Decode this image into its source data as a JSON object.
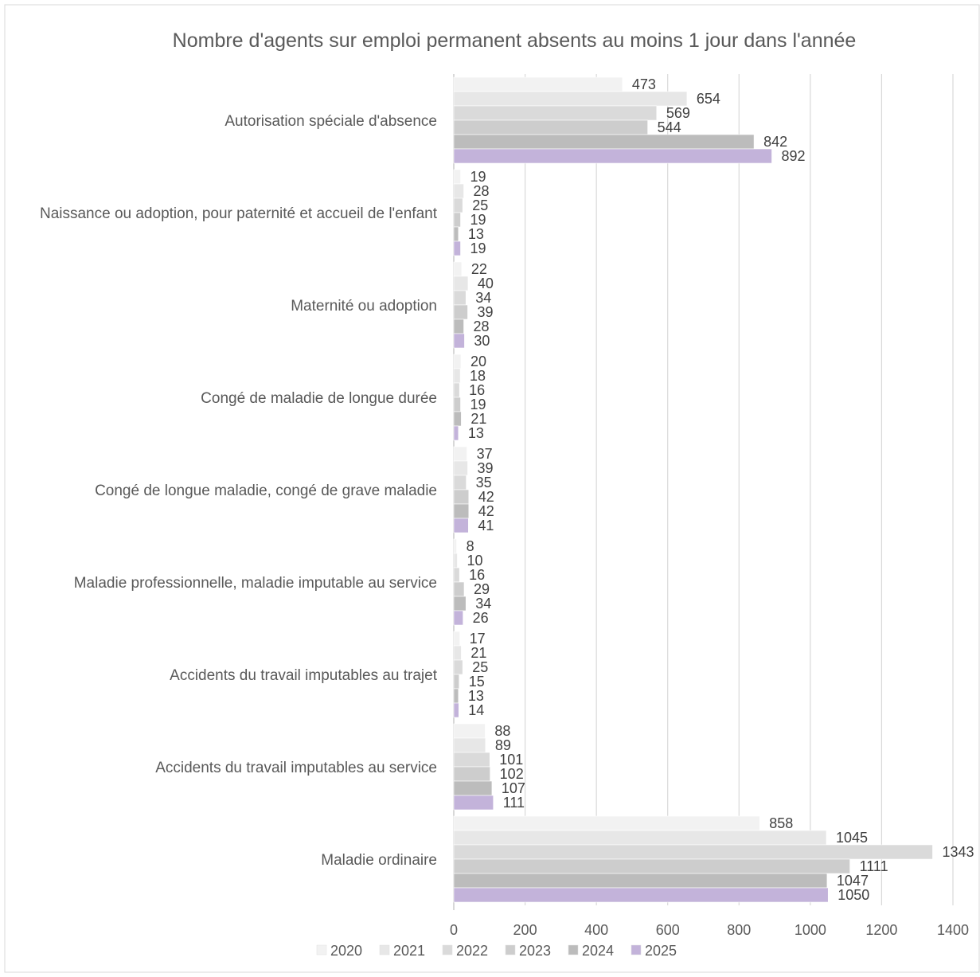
{
  "chart_data": {
    "type": "bar",
    "orientation": "horizontal",
    "title": "Nombre d'agents sur emploi permanent absents au moins 1 jour dans l'année",
    "categories": [
      "Autorisation spéciale d'absence",
      "Naissance ou adoption, pour paternité et accueil de l'enfant",
      "Maternité ou adoption",
      "Congé de maladie de longue durée",
      "Congé de longue maladie, congé de grave maladie",
      "Maladie professionnelle, maladie imputable au service",
      "Accidents du travail imputables au trajet",
      "Accidents du travail imputables au service",
      "Maladie ordinaire"
    ],
    "series": [
      {
        "name": "2020",
        "color": "#f2f2f2",
        "values": [
          473,
          19,
          22,
          20,
          37,
          8,
          17,
          88,
          858
        ]
      },
      {
        "name": "2021",
        "color": "#e7e7e7",
        "values": [
          654,
          28,
          40,
          18,
          39,
          10,
          21,
          89,
          1045
        ]
      },
      {
        "name": "2022",
        "color": "#dadada",
        "values": [
          569,
          25,
          34,
          16,
          35,
          16,
          25,
          101,
          1343
        ]
      },
      {
        "name": "2023",
        "color": "#cdcdcd",
        "values": [
          544,
          19,
          39,
          19,
          42,
          29,
          15,
          102,
          1111
        ]
      },
      {
        "name": "2024",
        "color": "#bcbcbc",
        "values": [
          842,
          13,
          28,
          21,
          42,
          34,
          13,
          107,
          1047
        ]
      },
      {
        "name": "2025",
        "color": "#c3b3da",
        "values": [
          892,
          19,
          30,
          13,
          41,
          26,
          14,
          111,
          1050
        ]
      }
    ],
    "xlim": [
      0,
      1400
    ],
    "x_ticks": [
      0,
      200,
      400,
      600,
      800,
      1000,
      1200,
      1400
    ],
    "grid": true,
    "legend_position": "bottom",
    "data_labels": true
  }
}
